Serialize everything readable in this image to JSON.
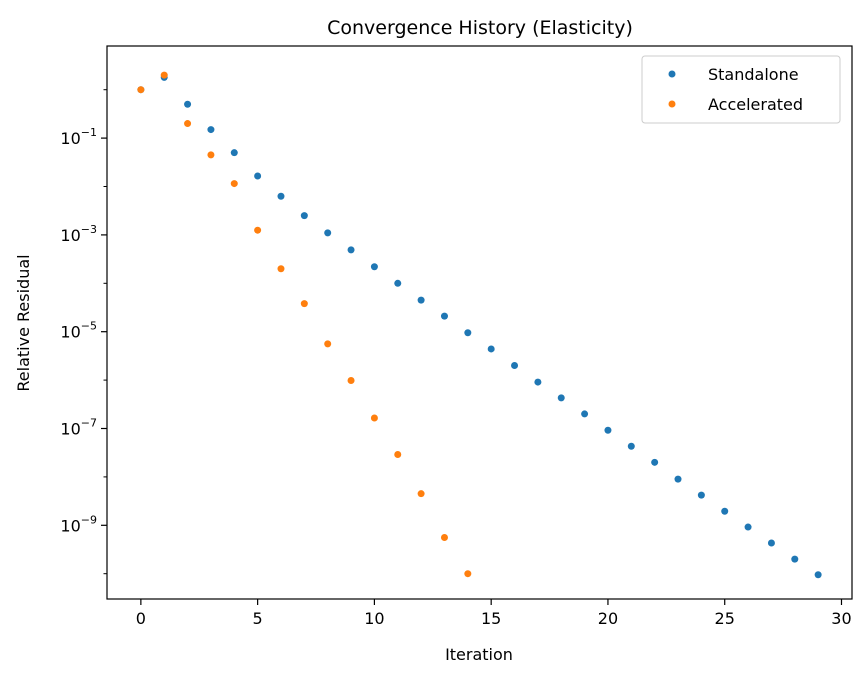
{
  "chart_data": {
    "type": "scatter",
    "title": "Convergence History (Elasticity)",
    "xlabel": "Iteration",
    "ylabel": "Relative Residual",
    "xlim": [
      -1.45,
      30.45
    ],
    "ylim": [
      3e-11,
      8.0
    ],
    "yscale": "log",
    "xticks": [
      0,
      5,
      10,
      15,
      20,
      25,
      30
    ],
    "yticks": [
      {
        "value": 0.1,
        "base": "10",
        "exp": "−1"
      },
      {
        "value": 0.001,
        "base": "10",
        "exp": "−3"
      },
      {
        "value": 1e-05,
        "base": "10",
        "exp": "−5"
      },
      {
        "value": 1e-07,
        "base": "10",
        "exp": "−7"
      },
      {
        "value": 1e-09,
        "base": "10",
        "exp": "−9"
      }
    ],
    "grid": false,
    "legend_position": "top-right",
    "series": [
      {
        "name": "Standalone",
        "color": "#1f77b4",
        "x": [
          0,
          1,
          2,
          3,
          4,
          5,
          6,
          7,
          8,
          9,
          10,
          11,
          12,
          13,
          14,
          15,
          16,
          17,
          18,
          19,
          20,
          21,
          22,
          23,
          24,
          25,
          26,
          27,
          28,
          29
        ],
        "y": [
          1.0,
          1.8,
          0.5,
          0.15,
          0.05,
          0.0165,
          0.0063,
          0.0025,
          0.0011,
          0.00049,
          0.00022,
          0.0001,
          4.5e-05,
          2.1e-05,
          9.5e-06,
          4.4e-06,
          2e-06,
          9.1e-07,
          4.3e-07,
          2e-07,
          9.2e-08,
          4.3e-08,
          2e-08,
          9e-09,
          4.2e-09,
          1.95e-09,
          9.2e-10,
          4.3e-10,
          2e-10,
          9.5e-11
        ]
      },
      {
        "name": "Accelerated",
        "color": "#ff7f0e",
        "x": [
          0,
          1,
          2,
          3,
          4,
          5,
          6,
          7,
          8,
          9,
          10,
          11,
          12,
          13,
          14
        ],
        "y": [
          1.0,
          2.0,
          0.2,
          0.045,
          0.0115,
          0.00125,
          0.0002,
          3.8e-05,
          5.6e-06,
          9.8e-07,
          1.65e-07,
          2.9e-08,
          4.5e-09,
          5.6e-10,
          1e-10
        ]
      }
    ]
  }
}
